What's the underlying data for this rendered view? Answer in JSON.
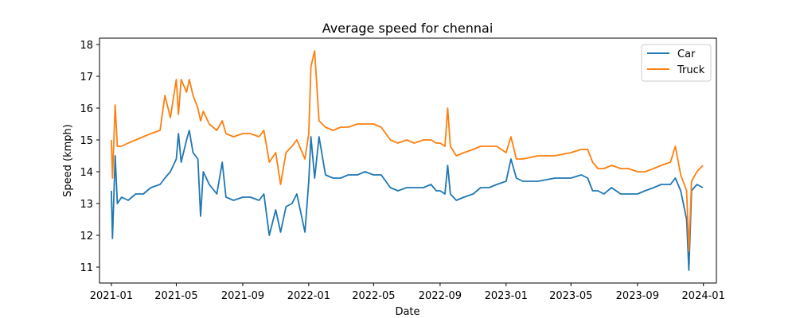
{
  "chart_data": {
    "type": "line",
    "title": "Average speed for chennai",
    "xlabel": "Date",
    "ylabel": "Speed (kmph)",
    "x_range": [
      "2020-12-10",
      "2024-01-25"
    ],
    "ylim": [
      10.5,
      18.2
    ],
    "x_ticks": [
      "2021-01",
      "2021-05",
      "2021-09",
      "2022-01",
      "2022-05",
      "2022-09",
      "2023-01",
      "2023-05",
      "2023-09",
      "2024-01"
    ],
    "y_ticks": [
      11,
      12,
      13,
      14,
      15,
      16,
      17,
      18
    ],
    "grid": false,
    "legend": "top-right",
    "series": [
      {
        "name": "Car",
        "color": "#1f77b4",
        "points": [
          [
            "2021-01-01",
            13.4
          ],
          [
            "2021-01-03",
            11.9
          ],
          [
            "2021-01-08",
            14.5
          ],
          [
            "2021-01-12",
            13.0
          ],
          [
            "2021-01-20",
            13.2
          ],
          [
            "2021-02-01",
            13.1
          ],
          [
            "2021-02-15",
            13.3
          ],
          [
            "2021-03-01",
            13.3
          ],
          [
            "2021-03-15",
            13.5
          ],
          [
            "2021-04-01",
            13.6
          ],
          [
            "2021-04-10",
            13.8
          ],
          [
            "2021-04-20",
            14.0
          ],
          [
            "2021-05-01",
            14.4
          ],
          [
            "2021-05-05",
            15.2
          ],
          [
            "2021-05-10",
            14.3
          ],
          [
            "2021-05-20",
            15.0
          ],
          [
            "2021-05-25",
            15.3
          ],
          [
            "2021-06-01",
            14.6
          ],
          [
            "2021-06-10",
            14.4
          ],
          [
            "2021-06-15",
            12.6
          ],
          [
            "2021-06-20",
            14.0
          ],
          [
            "2021-07-01",
            13.6
          ],
          [
            "2021-07-15",
            13.3
          ],
          [
            "2021-07-25",
            14.3
          ],
          [
            "2021-08-01",
            13.2
          ],
          [
            "2021-08-15",
            13.1
          ],
          [
            "2021-09-01",
            13.2
          ],
          [
            "2021-09-15",
            13.2
          ],
          [
            "2021-10-01",
            13.1
          ],
          [
            "2021-10-10",
            13.3
          ],
          [
            "2021-10-20",
            12.0
          ],
          [
            "2021-11-01",
            12.8
          ],
          [
            "2021-11-10",
            12.1
          ],
          [
            "2021-11-20",
            12.9
          ],
          [
            "2021-12-01",
            13.0
          ],
          [
            "2021-12-10",
            13.3
          ],
          [
            "2021-12-25",
            12.1
          ],
          [
            "2022-01-01",
            13.7
          ],
          [
            "2022-01-05",
            15.1
          ],
          [
            "2022-01-12",
            13.8
          ],
          [
            "2022-01-20",
            15.1
          ],
          [
            "2022-02-01",
            13.9
          ],
          [
            "2022-02-15",
            13.8
          ],
          [
            "2022-03-01",
            13.8
          ],
          [
            "2022-03-15",
            13.9
          ],
          [
            "2022-04-01",
            13.9
          ],
          [
            "2022-04-15",
            14.0
          ],
          [
            "2022-05-01",
            13.9
          ],
          [
            "2022-05-15",
            13.9
          ],
          [
            "2022-06-01",
            13.5
          ],
          [
            "2022-06-15",
            13.4
          ],
          [
            "2022-07-01",
            13.5
          ],
          [
            "2022-07-15",
            13.5
          ],
          [
            "2022-08-01",
            13.5
          ],
          [
            "2022-08-15",
            13.6
          ],
          [
            "2022-08-25",
            13.4
          ],
          [
            "2022-09-01",
            13.4
          ],
          [
            "2022-09-10",
            13.3
          ],
          [
            "2022-09-15",
            14.2
          ],
          [
            "2022-09-20",
            13.3
          ],
          [
            "2022-10-01",
            13.1
          ],
          [
            "2022-10-15",
            13.2
          ],
          [
            "2022-11-01",
            13.3
          ],
          [
            "2022-11-15",
            13.5
          ],
          [
            "2022-12-01",
            13.5
          ],
          [
            "2022-12-15",
            13.6
          ],
          [
            "2023-01-01",
            13.7
          ],
          [
            "2023-01-10",
            14.4
          ],
          [
            "2023-01-20",
            13.8
          ],
          [
            "2023-02-01",
            13.7
          ],
          [
            "2023-03-01",
            13.7
          ],
          [
            "2023-04-01",
            13.8
          ],
          [
            "2023-05-01",
            13.8
          ],
          [
            "2023-05-20",
            13.9
          ],
          [
            "2023-06-01",
            13.8
          ],
          [
            "2023-06-10",
            13.4
          ],
          [
            "2023-06-20",
            13.4
          ],
          [
            "2023-07-01",
            13.3
          ],
          [
            "2023-07-15",
            13.5
          ],
          [
            "2023-08-01",
            13.3
          ],
          [
            "2023-08-15",
            13.3
          ],
          [
            "2023-09-01",
            13.3
          ],
          [
            "2023-09-15",
            13.4
          ],
          [
            "2023-10-01",
            13.5
          ],
          [
            "2023-10-15",
            13.6
          ],
          [
            "2023-11-01",
            13.6
          ],
          [
            "2023-11-10",
            13.8
          ],
          [
            "2023-11-20",
            13.4
          ],
          [
            "2023-12-01",
            12.5
          ],
          [
            "2023-12-05",
            10.9
          ],
          [
            "2023-12-10",
            13.4
          ],
          [
            "2023-12-20",
            13.6
          ],
          [
            "2023-12-31",
            13.5
          ]
        ]
      },
      {
        "name": "Truck",
        "color": "#ff7f0e",
        "points": [
          [
            "2021-01-01",
            15.0
          ],
          [
            "2021-01-03",
            13.8
          ],
          [
            "2021-01-08",
            16.1
          ],
          [
            "2021-01-12",
            14.8
          ],
          [
            "2021-01-20",
            14.8
          ],
          [
            "2021-02-01",
            14.9
          ],
          [
            "2021-02-15",
            15.0
          ],
          [
            "2021-03-01",
            15.1
          ],
          [
            "2021-03-15",
            15.2
          ],
          [
            "2021-04-01",
            15.3
          ],
          [
            "2021-04-10",
            16.4
          ],
          [
            "2021-04-20",
            15.7
          ],
          [
            "2021-05-01",
            16.9
          ],
          [
            "2021-05-05",
            15.8
          ],
          [
            "2021-05-10",
            16.9
          ],
          [
            "2021-05-20",
            16.5
          ],
          [
            "2021-05-25",
            16.9
          ],
          [
            "2021-06-01",
            16.4
          ],
          [
            "2021-06-10",
            16.0
          ],
          [
            "2021-06-15",
            15.6
          ],
          [
            "2021-06-20",
            15.9
          ],
          [
            "2021-07-01",
            15.5
          ],
          [
            "2021-07-15",
            15.3
          ],
          [
            "2021-07-25",
            15.6
          ],
          [
            "2021-08-01",
            15.2
          ],
          [
            "2021-08-15",
            15.1
          ],
          [
            "2021-09-01",
            15.2
          ],
          [
            "2021-09-15",
            15.2
          ],
          [
            "2021-10-01",
            15.1
          ],
          [
            "2021-10-10",
            15.3
          ],
          [
            "2021-10-20",
            14.3
          ],
          [
            "2021-11-01",
            14.6
          ],
          [
            "2021-11-10",
            13.6
          ],
          [
            "2021-11-20",
            14.6
          ],
          [
            "2021-12-01",
            14.8
          ],
          [
            "2021-12-10",
            15.0
          ],
          [
            "2021-12-25",
            14.4
          ],
          [
            "2022-01-01",
            15.2
          ],
          [
            "2022-01-05",
            17.3
          ],
          [
            "2022-01-12",
            17.8
          ],
          [
            "2022-01-20",
            15.6
          ],
          [
            "2022-02-01",
            15.4
          ],
          [
            "2022-02-15",
            15.3
          ],
          [
            "2022-03-01",
            15.4
          ],
          [
            "2022-03-15",
            15.4
          ],
          [
            "2022-04-01",
            15.5
          ],
          [
            "2022-04-15",
            15.5
          ],
          [
            "2022-05-01",
            15.5
          ],
          [
            "2022-05-15",
            15.4
          ],
          [
            "2022-06-01",
            15.0
          ],
          [
            "2022-06-15",
            14.9
          ],
          [
            "2022-07-01",
            15.0
          ],
          [
            "2022-07-15",
            14.9
          ],
          [
            "2022-08-01",
            15.0
          ],
          [
            "2022-08-15",
            15.0
          ],
          [
            "2022-08-25",
            14.9
          ],
          [
            "2022-09-01",
            14.9
          ],
          [
            "2022-09-10",
            14.8
          ],
          [
            "2022-09-15",
            16.0
          ],
          [
            "2022-09-20",
            14.8
          ],
          [
            "2022-10-01",
            14.5
          ],
          [
            "2022-10-15",
            14.6
          ],
          [
            "2022-11-01",
            14.7
          ],
          [
            "2022-11-15",
            14.8
          ],
          [
            "2022-12-01",
            14.8
          ],
          [
            "2022-12-15",
            14.8
          ],
          [
            "2023-01-01",
            14.6
          ],
          [
            "2023-01-10",
            15.1
          ],
          [
            "2023-01-20",
            14.4
          ],
          [
            "2023-02-01",
            14.4
          ],
          [
            "2023-03-01",
            14.5
          ],
          [
            "2023-04-01",
            14.5
          ],
          [
            "2023-05-01",
            14.6
          ],
          [
            "2023-05-20",
            14.7
          ],
          [
            "2023-06-01",
            14.7
          ],
          [
            "2023-06-10",
            14.3
          ],
          [
            "2023-06-20",
            14.1
          ],
          [
            "2023-07-01",
            14.1
          ],
          [
            "2023-07-15",
            14.2
          ],
          [
            "2023-08-01",
            14.1
          ],
          [
            "2023-08-15",
            14.1
          ],
          [
            "2023-09-01",
            14.0
          ],
          [
            "2023-09-15",
            14.0
          ],
          [
            "2023-10-01",
            14.1
          ],
          [
            "2023-10-15",
            14.2
          ],
          [
            "2023-11-01",
            14.3
          ],
          [
            "2023-11-10",
            14.8
          ],
          [
            "2023-11-20",
            13.9
          ],
          [
            "2023-12-01",
            13.4
          ],
          [
            "2023-12-05",
            11.5
          ],
          [
            "2023-12-10",
            13.7
          ],
          [
            "2023-12-20",
            14.0
          ],
          [
            "2023-12-31",
            14.2
          ]
        ]
      }
    ]
  }
}
